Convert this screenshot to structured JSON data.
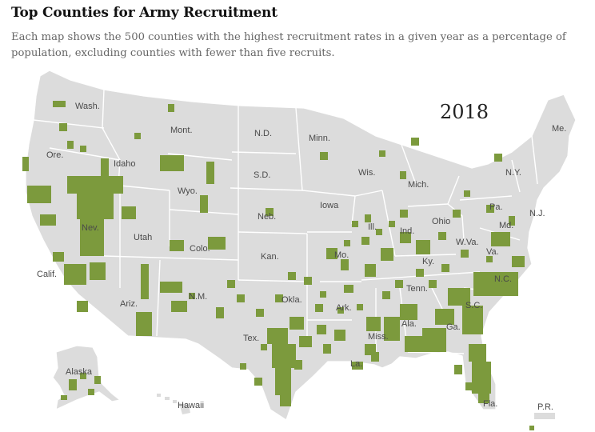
{
  "header": {
    "title": "Top Counties for Army Recruitment",
    "subtitle": "Each map shows the 500 counties with the highest recruitment rates in a given year as a percentage of population, excluding counties with fewer than five recruits."
  },
  "map": {
    "year": "2018",
    "colors": {
      "land": "#dcdcdc",
      "border": "#ffffff",
      "highlight": "#7c9a3d",
      "label": "#4a4a4a"
    },
    "state_labels": {
      "wash": "Wash.",
      "ore": "Ore.",
      "calif": "Calif.",
      "nev": "Nev.",
      "idaho": "Idaho",
      "mont": "Mont.",
      "wyo": "Wyo.",
      "utah": "Utah",
      "colo": "Colo.",
      "ariz": "Ariz.",
      "nm": "N.M.",
      "nd": "N.D.",
      "sd": "S.D.",
      "neb": "Neb.",
      "kan": "Kan.",
      "okla": "Okla.",
      "tex": "Tex.",
      "minn": "Minn.",
      "iowa": "Iowa",
      "mo": "Mo.",
      "ark": "Ark.",
      "la": "La.",
      "wis": "Wis.",
      "ill": "Ill.",
      "mich": "Mich.",
      "ind": "Ind.",
      "ohio": "Ohio",
      "ky": "Ky.",
      "tenn": "Tenn.",
      "miss": "Miss.",
      "ala": "Ala.",
      "ga": "Ga.",
      "fla": "Fla.",
      "sc": "S.C.",
      "nc": "N.C.",
      "va": "Va.",
      "wva": "W.Va.",
      "pa": "Pa.",
      "ny": "N.Y.",
      "nj": "N.J.",
      "md": "Md.",
      "me": "Me.",
      "alaska": "Alaska",
      "hawaii": "Hawaii",
      "pr": "P.R."
    }
  }
}
